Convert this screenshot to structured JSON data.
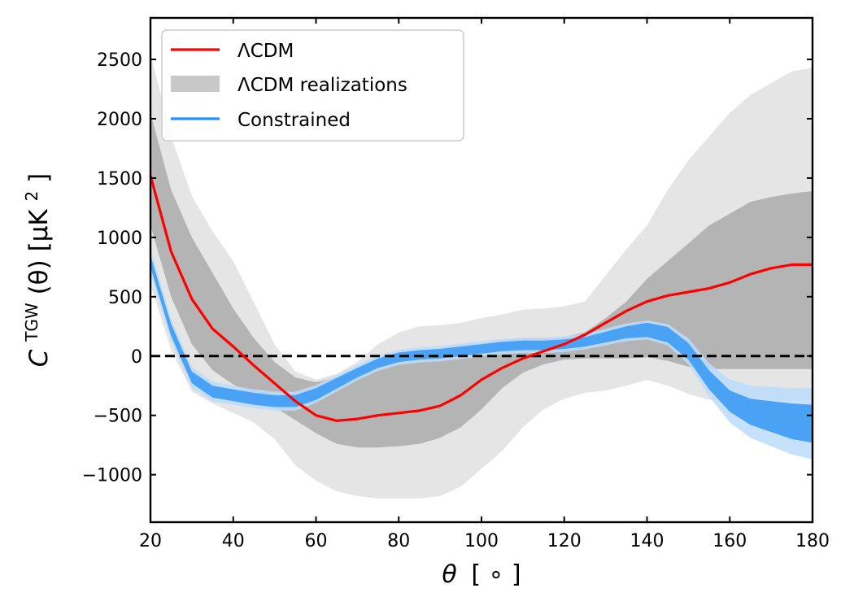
{
  "chart_data": {
    "type": "line",
    "title": "",
    "xlabel_symbol": "θ",
    "xlabel_unit": "[ ∘ ]",
    "ylabel_main": "C",
    "ylabel_super": "TGW",
    "ylabel_arg": "(θ) [μK",
    "ylabel_unit_super": "2",
    "ylabel_close": "]",
    "xlim": [
      20,
      180
    ],
    "ylim": [
      -1400,
      2850
    ],
    "xticks": [
      20,
      40,
      60,
      80,
      100,
      120,
      140,
      160,
      180
    ],
    "yticks": [
      -1000,
      -500,
      0,
      500,
      1000,
      1500,
      2000,
      2500
    ],
    "ytick_labels": [
      "−1000",
      "−500",
      "0",
      "500",
      "1000",
      "1500",
      "2000",
      "2500"
    ],
    "legend": {
      "position": "top-left",
      "entries": [
        {
          "label": "ΛCDM",
          "kind": "line",
          "color": "#ff0000"
        },
        {
          "label": "ΛCDM realizations",
          "kind": "patch",
          "color": "#c8c8c8"
        },
        {
          "label": "Constrained",
          "kind": "line",
          "color": "#1e90ff"
        }
      ]
    },
    "colors": {
      "lcdm": "#ff0000",
      "outer_band": "#e5e5e5",
      "inner_band": "#b4b4b4",
      "constrained_outer": "#bcdcfb",
      "constrained_inner": "#4aa2f5",
      "zero_line": "#000000"
    },
    "x": [
      20,
      25,
      30,
      35,
      40,
      45,
      50,
      55,
      60,
      65,
      70,
      75,
      80,
      85,
      90,
      95,
      100,
      105,
      110,
      115,
      120,
      125,
      130,
      135,
      140,
      145,
      150,
      155,
      160,
      165,
      170,
      175,
      180
    ],
    "series": [
      {
        "name": "ΛCDM",
        "values": [
          1520,
          880,
          480,
          230,
          80,
          -80,
          -230,
          -380,
          -500,
          -545,
          -530,
          -500,
          -480,
          -460,
          -420,
          -330,
          -200,
          -100,
          -20,
          40,
          100,
          180,
          280,
          380,
          460,
          510,
          540,
          570,
          620,
          690,
          740,
          770,
          770
        ]
      },
      {
        "name": "ΛCDM realizations (inner)",
        "upper": [
          2050,
          1400,
          1000,
          700,
          400,
          150,
          -50,
          -180,
          -220,
          -180,
          -100,
          -30,
          10,
          40,
          70,
          90,
          110,
          130,
          150,
          150,
          160,
          200,
          320,
          460,
          650,
          800,
          950,
          1100,
          1200,
          1300,
          1340,
          1370,
          1390
        ],
        "lower": [
          1100,
          500,
          100,
          -120,
          -240,
          -330,
          -430,
          -540,
          -650,
          -740,
          -770,
          -770,
          -760,
          -740,
          -690,
          -600,
          -450,
          -270,
          -140,
          -70,
          -30,
          -20,
          -20,
          -20,
          -10,
          -40,
          -90,
          -110,
          -110,
          -110,
          -110,
          -110,
          -110
        ]
      },
      {
        "name": "ΛCDM realizations (outer)",
        "upper": [
          2550,
          1850,
          1350,
          1050,
          800,
          450,
          100,
          -130,
          -200,
          -150,
          -50,
          100,
          200,
          250,
          260,
          280,
          320,
          350,
          390,
          400,
          420,
          460,
          680,
          900,
          1100,
          1400,
          1650,
          1850,
          2050,
          2200,
          2300,
          2400,
          2430
        ],
        "lower": [
          600,
          50,
          -300,
          -400,
          -480,
          -560,
          -700,
          -920,
          -1050,
          -1140,
          -1180,
          -1200,
          -1200,
          -1200,
          -1180,
          -1100,
          -950,
          -800,
          -600,
          -450,
          -360,
          -310,
          -290,
          -250,
          -200,
          -250,
          -320,
          -370,
          -370,
          -370,
          -370,
          -370,
          -370
        ]
      },
      {
        "name": "Constrained",
        "values": [
          800,
          220,
          -180,
          -300,
          -330,
          -360,
          -380,
          -380,
          -320,
          -230,
          -140,
          -60,
          -10,
          10,
          20,
          40,
          60,
          80,
          90,
          90,
          100,
          120,
          160,
          200,
          220,
          180,
          40,
          -200,
          -380,
          -470,
          -510,
          -550,
          -570
        ],
        "halfwidth_inner": [
          50,
          50,
          50,
          50,
          50,
          50,
          50,
          50,
          50,
          45,
          40,
          40,
          40,
          40,
          40,
          40,
          40,
          40,
          40,
          40,
          40,
          40,
          45,
          50,
          60,
          65,
          70,
          80,
          90,
          110,
          130,
          150,
          160
        ],
        "halfwidth_outer": [
          100,
          95,
          90,
          85,
          80,
          80,
          80,
          80,
          75,
          70,
          65,
          65,
          65,
          65,
          65,
          65,
          65,
          65,
          65,
          65,
          65,
          65,
          70,
          75,
          80,
          90,
          110,
          140,
          180,
          220,
          250,
          280,
          300
        ]
      }
    ]
  }
}
